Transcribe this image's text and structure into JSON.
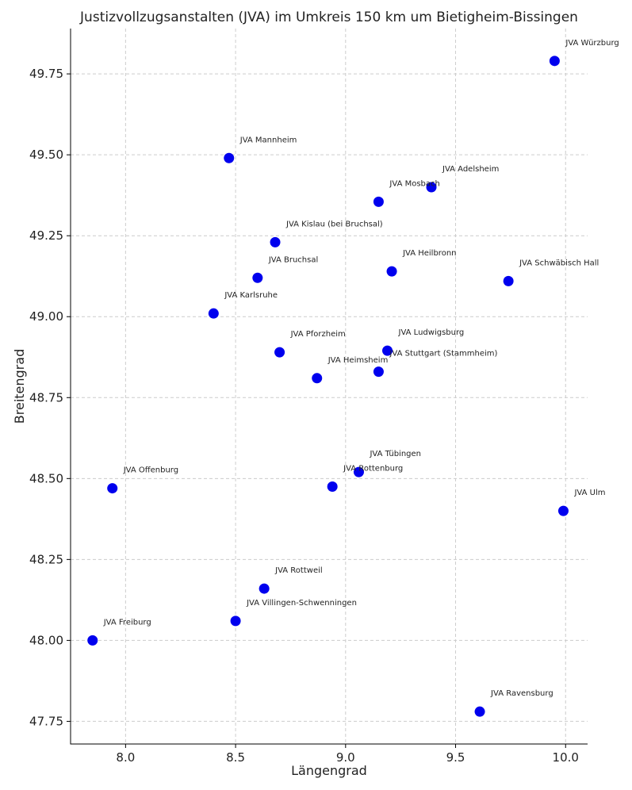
{
  "chart_data": {
    "type": "scatter",
    "title": "Justizvollzugsanstalten (JVA) im Umkreis 150 km um Bietigheim-Bissingen",
    "xlabel": "Längengrad",
    "ylabel": "Breitengrad",
    "xlim": [
      7.75,
      10.1
    ],
    "ylim": [
      47.68,
      49.89
    ],
    "xticks": [
      8.0,
      8.5,
      9.0,
      9.5,
      10.0
    ],
    "yticks": [
      47.75,
      48.0,
      48.25,
      48.5,
      48.75,
      49.0,
      49.25,
      49.5,
      49.75
    ],
    "grid": true,
    "marker_color": "#0000ee",
    "points": [
      {
        "label": "JVA Würzburg",
        "x": 9.95,
        "y": 49.79
      },
      {
        "label": "JVA Mannheim",
        "x": 8.47,
        "y": 49.49
      },
      {
        "label": "JVA Adelsheim",
        "x": 9.39,
        "y": 49.4
      },
      {
        "label": "JVA Mosbach",
        "x": 9.15,
        "y": 49.355
      },
      {
        "label": "JVA Kislau (bei Bruchsal)",
        "x": 8.68,
        "y": 49.23
      },
      {
        "label": "JVA Heilbronn",
        "x": 9.21,
        "y": 49.14
      },
      {
        "label": "JVA Bruchsal",
        "x": 8.6,
        "y": 49.12
      },
      {
        "label": "JVA Schwäbisch Hall",
        "x": 9.74,
        "y": 49.11
      },
      {
        "label": "JVA Karlsruhe",
        "x": 8.4,
        "y": 49.01
      },
      {
        "label": "JVA Pforzheim",
        "x": 8.7,
        "y": 48.89
      },
      {
        "label": "JVA Ludwigsburg",
        "x": 9.19,
        "y": 48.895
      },
      {
        "label": "JVA Stuttgart (Stammheim)",
        "x": 9.15,
        "y": 48.83
      },
      {
        "label": "JVA Heimsheim",
        "x": 8.87,
        "y": 48.81
      },
      {
        "label": "JVA Tübingen",
        "x": 9.06,
        "y": 48.52
      },
      {
        "label": "JVA Rottenburg",
        "x": 8.94,
        "y": 48.475
      },
      {
        "label": "JVA Offenburg",
        "x": 7.94,
        "y": 48.47
      },
      {
        "label": "JVA Ulm",
        "x": 9.99,
        "y": 48.4
      },
      {
        "label": "JVA Rottweil",
        "x": 8.63,
        "y": 48.16
      },
      {
        "label": "JVA Villingen-Schwenningen",
        "x": 8.5,
        "y": 48.06
      },
      {
        "label": "JVA Freiburg",
        "x": 7.85,
        "y": 48.0
      },
      {
        "label": "JVA Ravensburg",
        "x": 9.61,
        "y": 47.78
      }
    ]
  }
}
